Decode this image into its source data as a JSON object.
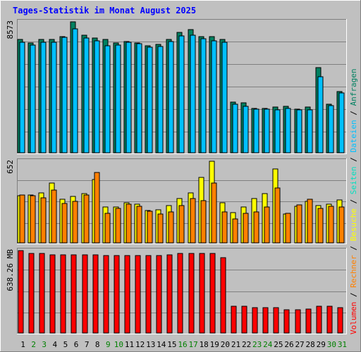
{
  "chart_data": {
    "type": "bar",
    "title": "Tages-Statistik im Monat August 2025",
    "days": [
      "1",
      "2",
      "3",
      "4",
      "5",
      "6",
      "7",
      "8",
      "9",
      "10",
      "11",
      "12",
      "13",
      "14",
      "15",
      "16",
      "17",
      "18",
      "19",
      "20",
      "21",
      "22",
      "23",
      "24",
      "25",
      "26",
      "27",
      "28",
      "29",
      "30",
      "31"
    ],
    "weekend_days": [
      "2",
      "3",
      "9",
      "10",
      "16",
      "17",
      "23",
      "24",
      "30",
      "31"
    ],
    "colors": {
      "anfragen": "#008060",
      "dateien": "#00c0ff",
      "seiten": "#00e0c0",
      "besuche": "#ffff00",
      "rechner": "#ff8000",
      "volumen": "#ff0000",
      "weekday_tick": "#000000",
      "weekend_tick": "#008000"
    },
    "panels": [
      {
        "id": "requests",
        "max_label": "8573",
        "max": 8573,
        "series": [
          {
            "name": "Anfragen",
            "color": "#008060",
            "values": [
              7400,
              7200,
              7400,
              7400,
              7600,
              8573,
              7700,
              7500,
              7400,
              7200,
              7300,
              7200,
              7000,
              7100,
              7400,
              7900,
              8050,
              7600,
              7600,
              7400,
              3300,
              3250,
              2900,
              2900,
              3000,
              3050,
              2850,
              3000,
              5600,
              3200,
              4000
            ]
          },
          {
            "name": "Dateien",
            "color": "#00c0ff",
            "values": [
              7250,
              7050,
              7250,
              7250,
              7550,
              8100,
              7500,
              7350,
              7000,
              7050,
              7250,
              7150,
              6900,
              6950,
              7300,
              7650,
              7700,
              7450,
              7350,
              7250,
              3200,
              3050,
              2850,
              2850,
              2800,
              2900,
              2800,
              2800,
              5000,
              3100,
              3900
            ]
          }
        ]
      },
      {
        "id": "visits",
        "max_label": "652",
        "max": 652,
        "series": [
          {
            "name": "Besuche",
            "color": "#ffff00",
            "values": [
              375,
              380,
              400,
              475,
              350,
              370,
              395,
              505,
              285,
              285,
              320,
              310,
              260,
              265,
              300,
              355,
              400,
              520,
              652,
              320,
              240,
              285,
              355,
              395,
              590,
              230,
              290,
              330,
              300,
              310,
              345
            ]
          },
          {
            "name": "Rechner",
            "color": "#ff8000",
            "values": [
              380,
              375,
              360,
              420,
              315,
              330,
              380,
              560,
              235,
              275,
              310,
              295,
              255,
              230,
              245,
              300,
              355,
              340,
              480,
              250,
              190,
              235,
              245,
              285,
              440,
              235,
              305,
              350,
              275,
              290,
              285
            ]
          }
        ]
      },
      {
        "id": "volume",
        "max_label": "638.26 MB",
        "max": 638.26,
        "series": [
          {
            "name": "Volumen",
            "color": "#ff0000",
            "values": [
              638.26,
              615,
              615,
              608,
              608,
              608,
              608,
              608,
              600,
              600,
              600,
              600,
              600,
              600,
              608,
              615,
              615,
              615,
              615,
              586,
              210,
              210,
              195,
              195,
              195,
              178,
              178,
              188,
              205,
              205,
              195
            ]
          }
        ]
      }
    ],
    "right_axis_legend": [
      {
        "text": "Volumen",
        "color": "#ff0000"
      },
      {
        "text": " / ",
        "color": "#000000"
      },
      {
        "text": "Rechner",
        "color": "#ff8000"
      },
      {
        "text": " / ",
        "color": "#000000"
      },
      {
        "text": "Besuche",
        "color": "#ffff00"
      },
      {
        "text": " / ",
        "color": "#000000"
      },
      {
        "text": "Seiten",
        "color": "#00e0c0"
      },
      {
        "text": " / ",
        "color": "#000000"
      },
      {
        "text": "Dateien",
        "color": "#00c0ff"
      },
      {
        "text": " / ",
        "color": "#000000"
      },
      {
        "text": "Anfragen",
        "color": "#008060"
      }
    ],
    "grid": true
  }
}
